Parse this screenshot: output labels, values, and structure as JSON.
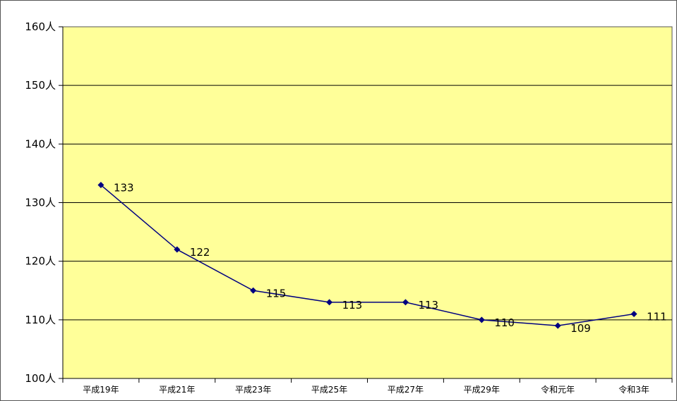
{
  "chart_data": {
    "type": "line",
    "title": "",
    "xlabel": "",
    "ylabel": "",
    "categories": [
      "平成19年",
      "平成21年",
      "平成23年",
      "平成25年",
      "平成27年",
      "平成29年",
      "令和元年",
      "令和3年"
    ],
    "values": [
      133,
      122,
      115,
      113,
      113,
      110,
      109,
      111
    ],
    "value_labels": [
      "133",
      "122",
      "115",
      "113",
      "113",
      "110",
      "109",
      "111"
    ],
    "ylim": [
      100,
      160
    ],
    "y_ticks": [
      160,
      150,
      140,
      130,
      120,
      110,
      100
    ],
    "y_tick_labels": [
      "160人",
      "150人",
      "140人",
      "130人",
      "120人",
      "110人",
      "100人"
    ],
    "grid": true,
    "legend": "none",
    "colors": {
      "plot_background": "#ffff99",
      "line": "#000080",
      "marker": "#000080",
      "gridline": "#000000"
    }
  }
}
